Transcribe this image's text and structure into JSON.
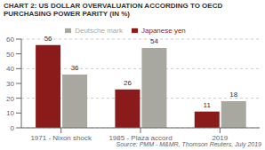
{
  "chart_data": {
    "type": "bar",
    "title": "CHART 2: US DOLLAR OVERVALUATION ACCORDING TO OECD PURCHASING POWER PARITY (IN %)",
    "categories": [
      "1971 - Nixon shock",
      "1985 - Plaza accord",
      "2019"
    ],
    "series": [
      {
        "name": "Japanese yen",
        "color": "#8B1A1A",
        "values": [
          56,
          26,
          11
        ]
      },
      {
        "name": "Deutsche mark",
        "color": "#A8A8A0",
        "values": [
          36,
          54,
          18
        ]
      }
    ],
    "ylim": [
      0,
      60
    ],
    "yticks": [
      0,
      10,
      20,
      30,
      40,
      50,
      60
    ],
    "grid": true,
    "legend": "top",
    "data_labels": true,
    "annotations": [
      "Source: PMM - M&MR, Thomson Reuters, July 2019"
    ]
  }
}
